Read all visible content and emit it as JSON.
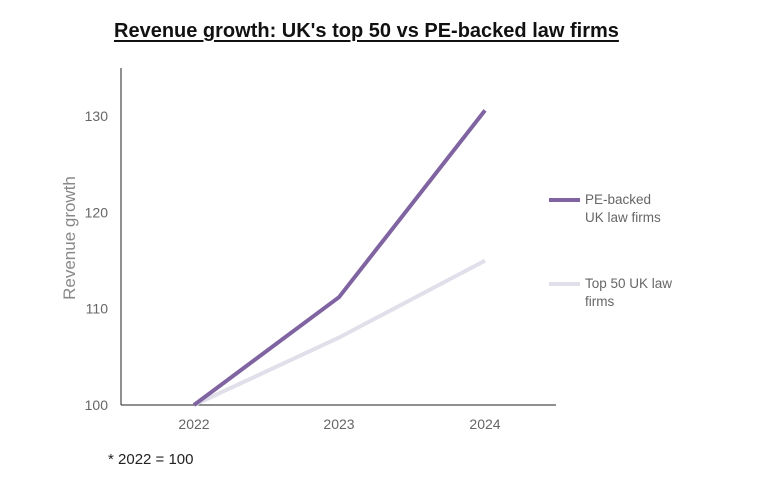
{
  "chart_data": {
    "type": "line",
    "title": "Revenue growth: UK's top 50 vs PE-backed law firms",
    "xlabel": "",
    "ylabel": "Revenue growth",
    "categories": [
      "2022",
      "2023",
      "2024"
    ],
    "ylim": [
      100,
      135
    ],
    "yticks": [
      100,
      110,
      120,
      130
    ],
    "grid": false,
    "legend_position": "right",
    "series": [
      {
        "name_lines": [
          "PE-backed",
          "UK law firms"
        ],
        "values": [
          100,
          111.2,
          130.6
        ],
        "color": "#8064a2"
      },
      {
        "name_lines": [
          "Top 50 UK law",
          "firms"
        ],
        "values": [
          100,
          107,
          115
        ],
        "color": "#e0dfea"
      }
    ],
    "footnote": "* 2022 = 100"
  }
}
